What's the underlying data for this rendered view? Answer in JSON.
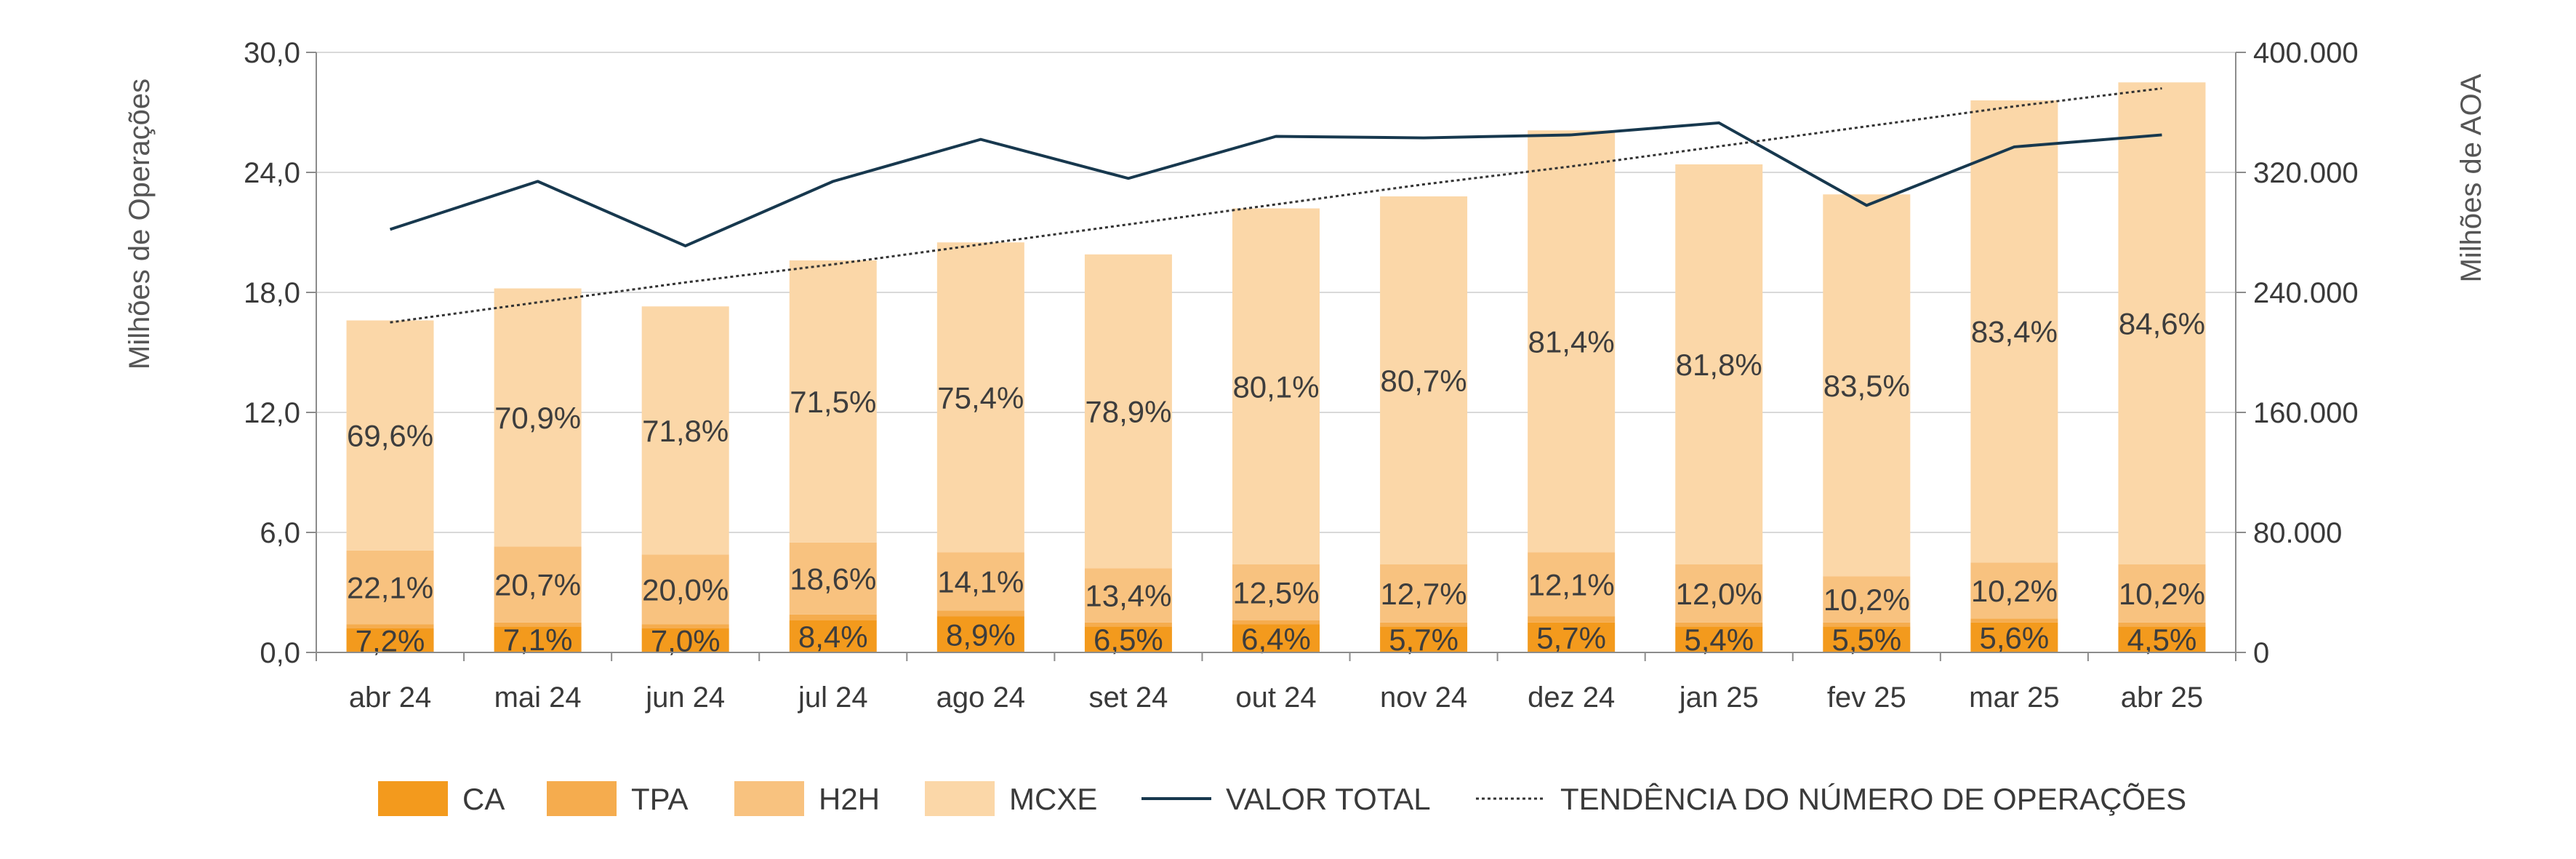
{
  "chart_data": {
    "type": "bar",
    "stacked": true,
    "categories": [
      "abr 24",
      "mai 24",
      "jun 24",
      "jul 24",
      "ago 24",
      "set 24",
      "out 24",
      "nov 24",
      "dez 24",
      "jan 25",
      "fev 25",
      "mar 25",
      "abr 25"
    ],
    "totals": [
      16.6,
      18.2,
      17.3,
      19.6,
      20.5,
      19.9,
      22.2,
      22.8,
      26.1,
      24.4,
      22.9,
      27.6,
      28.5
    ],
    "series": [
      {
        "name": "CA",
        "color": "#F39A1D",
        "values": [
          1.2,
          1.3,
          1.2,
          1.6,
          1.8,
          1.3,
          1.4,
          1.3,
          1.5,
          1.3,
          1.3,
          1.5,
          1.3
        ],
        "labels": [
          "7,2%",
          "7,1%",
          "7,0%",
          "8,4%",
          "8,9%",
          "6,5%",
          "6,4%",
          "5,7%",
          "5,7%",
          "5,4%",
          "5,5%",
          "5,6%",
          "4,5%"
        ]
      },
      {
        "name": "TPA",
        "color": "#F5AC4E",
        "values": [
          0.2,
          0.2,
          0.2,
          0.3,
          0.3,
          0.2,
          0.2,
          0.2,
          0.3,
          0.2,
          0.2,
          0.2,
          0.2
        ],
        "labels": []
      },
      {
        "name": "H2H",
        "color": "#F8C27F",
        "values": [
          3.7,
          3.8,
          3.5,
          3.6,
          2.9,
          2.7,
          2.8,
          2.9,
          3.2,
          2.9,
          2.3,
          2.8,
          2.9
        ],
        "labels": [
          "22,1%",
          "20,7%",
          "20,0%",
          "18,6%",
          "14,1%",
          "13,4%",
          "12,5%",
          "12,7%",
          "12,1%",
          "12,0%",
          "10,2%",
          "10,2%",
          "10,2%"
        ]
      },
      {
        "name": "MCXE",
        "color": "#FBD7A8",
        "values": [
          11.5,
          12.9,
          12.4,
          14.1,
          15.5,
          15.7,
          17.8,
          18.4,
          21.1,
          20.0,
          19.1,
          23.1,
          24.1
        ],
        "labels": [
          "69,6%",
          "70,9%",
          "71,8%",
          "71,5%",
          "75,4%",
          "78,9%",
          "80,1%",
          "80,7%",
          "81,4%",
          "81,8%",
          "83,5%",
          "83,4%",
          "84,6%"
        ]
      }
    ],
    "line_series": [
      {
        "name": "VALOR TOTAL",
        "axis": "right",
        "color": "#17384E",
        "values": [
          282000,
          314000,
          271000,
          314000,
          342000,
          316000,
          344000,
          343000,
          345000,
          353000,
          298000,
          337000,
          345000
        ]
      },
      {
        "name": "TENDÊNCIA DO NÚMERO DE OPERAÇÕES",
        "axis": "left",
        "color": "#333333",
        "dashed": true,
        "values": [
          16.5,
          17.5,
          18.5,
          19.4,
          20.4,
          21.4,
          22.4,
          23.4,
          24.3,
          25.3,
          26.3,
          27.3,
          28.2
        ]
      }
    ],
    "y_left": {
      "label": "Milhões de Operações",
      "min": 0,
      "max": 30,
      "ticks": [
        "0,0",
        "6,0",
        "12,0",
        "18,0",
        "24,0",
        "30,0"
      ]
    },
    "y_right": {
      "label": "Milhões de AOA",
      "min": 0,
      "max": 400000,
      "ticks": [
        "0",
        "80.000",
        "160.000",
        "240.000",
        "320.000",
        "400.000"
      ]
    },
    "grid": true,
    "legend_position": "bottom"
  }
}
